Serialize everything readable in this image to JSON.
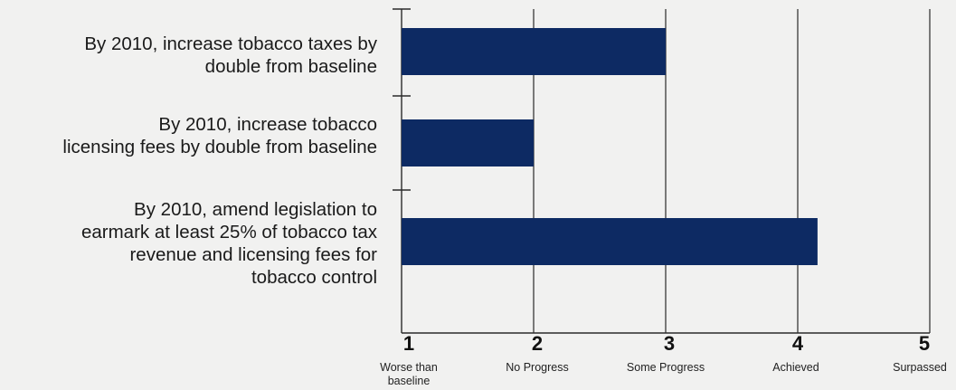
{
  "chart_data": {
    "type": "bar",
    "orientation": "horizontal",
    "categories": [
      "By 2010, increase tobacco taxes by double from baseline",
      "By 2010, increase tobacco licensing fees by double from baseline",
      "By 2010, amend legislation to earmark at least 25% of tobacco tax revenue and licensing fees for tobacco control"
    ],
    "category_lines": [
      [
        "By 2010, increase tobacco taxes by",
        "double from baseline"
      ],
      [
        "By 2010, increase tobacco",
        "licensing fees by double from baseline"
      ],
      [
        "By 2010, amend legislation to",
        "earmark at least 25% of tobacco tax",
        "revenue and licensing fees for",
        "tobacco control"
      ]
    ],
    "values": [
      3.0,
      2.0,
      4.15
    ],
    "xlim": [
      1,
      5
    ],
    "ticks": [
      {
        "value": 1,
        "label": "1",
        "text": "Worse than baseline",
        "lines": [
          "Worse than",
          "baseline"
        ]
      },
      {
        "value": 2,
        "label": "2",
        "text": "No Progress",
        "lines": [
          "No Progress"
        ]
      },
      {
        "value": 3,
        "label": "3",
        "text": "Some Progress",
        "lines": [
          "Some Progress"
        ]
      },
      {
        "value": 4,
        "label": "4",
        "text": "Achieved",
        "lines": [
          "Achieved"
        ]
      },
      {
        "value": 5,
        "label": "5",
        "text": "Surpassed",
        "lines": [
          "Surpassed"
        ]
      }
    ],
    "grid": true,
    "title": "",
    "xlabel": "",
    "ylabel": "",
    "colors": {
      "bar": "#0d2a63",
      "grid": "#2a2a2a",
      "background": "#f1f1f0"
    }
  }
}
